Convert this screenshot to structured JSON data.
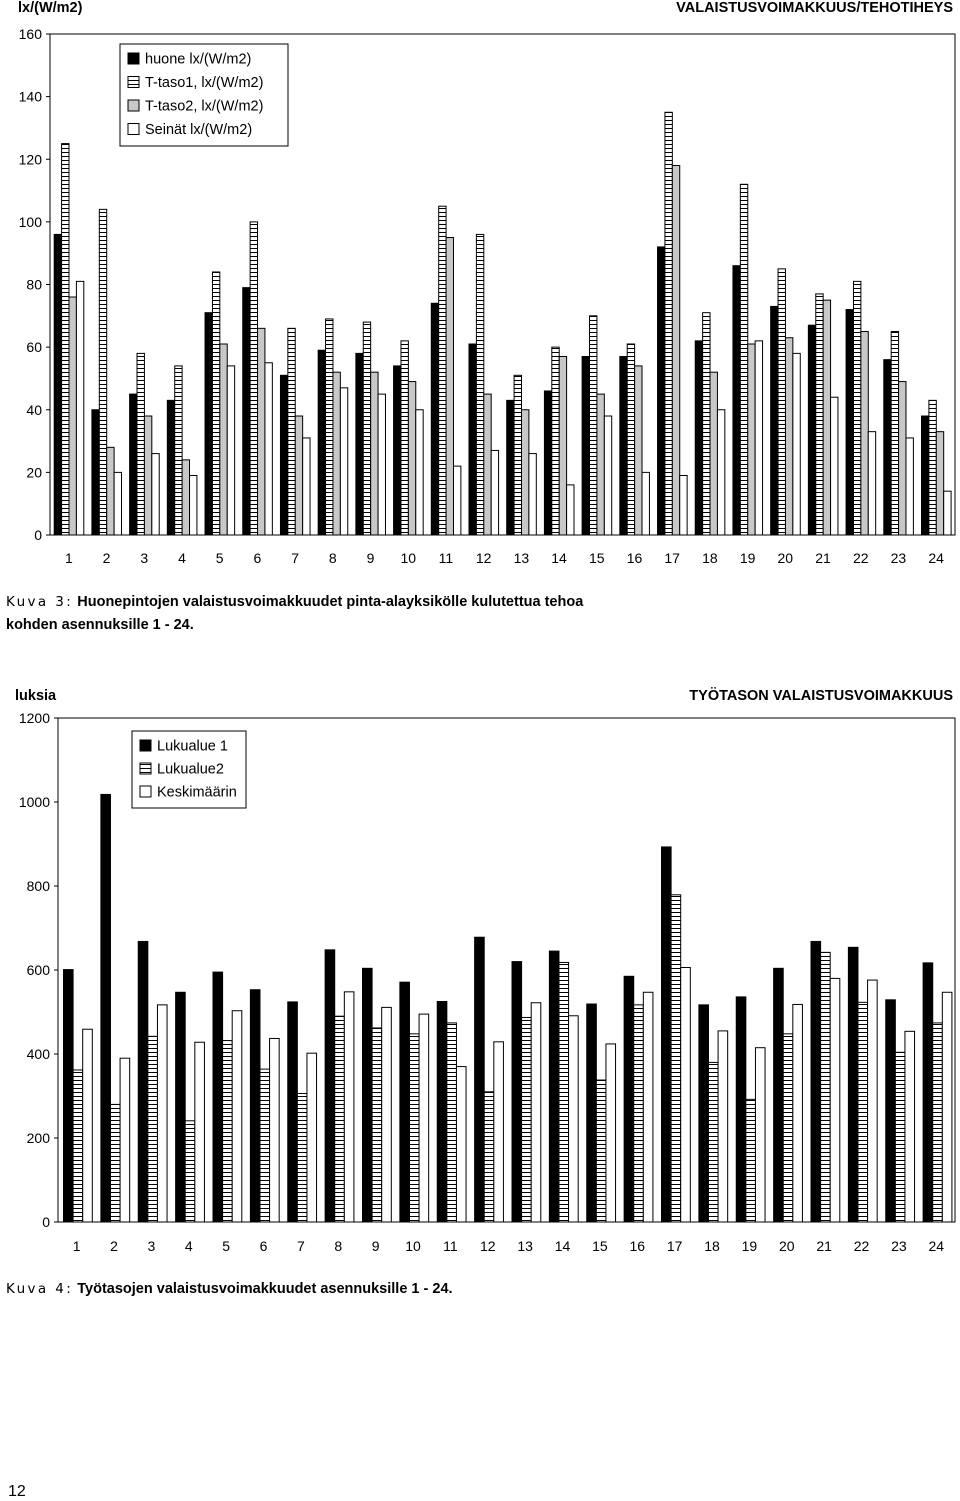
{
  "chart_data": [
    {
      "type": "bar",
      "title": "VALAISTUSVOIMAKKUUS/TEHOTIHEYS",
      "ylabel": "lx/(W/m2)",
      "xlabel": "",
      "ylim": [
        0,
        160
      ],
      "yticks": [
        0,
        20,
        40,
        60,
        80,
        100,
        120,
        140,
        160
      ],
      "grid": false,
      "legend_position": "top-left",
      "categories": [
        "1",
        "2",
        "3",
        "4",
        "5",
        "6",
        "7",
        "8",
        "9",
        "10",
        "11",
        "12",
        "13",
        "14",
        "15",
        "16",
        "17",
        "18",
        "19",
        "20",
        "21",
        "22",
        "23",
        "24"
      ],
      "series": [
        {
          "name": "huone lx/(W/m2)",
          "pattern": "solid",
          "values": [
            96,
            40,
            45,
            43,
            71,
            79,
            51,
            59,
            58,
            54,
            74,
            61,
            43,
            46,
            57,
            57,
            92,
            62,
            86,
            73,
            67,
            72,
            56,
            38
          ]
        },
        {
          "name": "T-taso1, lx/(W/m2)",
          "pattern": "hstripe",
          "values": [
            125,
            104,
            58,
            54,
            84,
            100,
            66,
            69,
            68,
            62,
            105,
            96,
            51,
            60,
            70,
            61,
            135,
            71,
            112,
            85,
            77,
            81,
            65,
            43
          ]
        },
        {
          "name": "T-taso2, lx/(W/m2)",
          "pattern": "gray",
          "values": [
            76,
            28,
            38,
            24,
            61,
            66,
            38,
            52,
            52,
            49,
            95,
            45,
            40,
            57,
            45,
            54,
            118,
            52,
            61,
            63,
            75,
            65,
            49,
            33
          ]
        },
        {
          "name": "Seinät lx/(W/m2)",
          "pattern": "white",
          "values": [
            81,
            20,
            26,
            19,
            54,
            55,
            31,
            47,
            45,
            40,
            22,
            27,
            26,
            16,
            38,
            20,
            19,
            40,
            62,
            58,
            44,
            33,
            31,
            14
          ]
        }
      ]
    },
    {
      "type": "bar",
      "title": "TYÖTASON VALAISTUSVOIMAKKUUS",
      "ylabel": "luksia",
      "xlabel": "",
      "ylim": [
        0,
        1200
      ],
      "yticks": [
        0,
        200,
        400,
        600,
        800,
        1000,
        1200
      ],
      "grid": false,
      "legend_position": "top-left",
      "categories": [
        "1",
        "2",
        "3",
        "4",
        "5",
        "6",
        "7",
        "8",
        "9",
        "10",
        "11",
        "12",
        "13",
        "14",
        "15",
        "16",
        "17",
        "18",
        "19",
        "20",
        "21",
        "22",
        "23",
        "24"
      ],
      "series": [
        {
          "name": "Lukualue 1",
          "pattern": "solid",
          "values": [
            601,
            1018,
            668,
            547,
            595,
            553,
            524,
            648,
            604,
            571,
            525,
            678,
            620,
            645,
            519,
            585,
            893,
            517,
            536,
            604,
            668,
            654,
            529,
            617
          ]
        },
        {
          "name": "Lukualue2",
          "pattern": "hstripe",
          "values": [
            362,
            280,
            442,
            241,
            432,
            364,
            306,
            490,
            462,
            448,
            474,
            310,
            487,
            618,
            338,
            517,
            779,
            380,
            292,
            448,
            642,
            523,
            404,
            474
          ]
        },
        {
          "name": "Keskimäärin",
          "pattern": "white",
          "values": [
            459,
            390,
            517,
            428,
            503,
            437,
            402,
            548,
            511,
            495,
            370,
            429,
            522,
            491,
            424,
            547,
            606,
            455,
            415,
            518,
            580,
            576,
            454,
            547
          ]
        }
      ]
    }
  ],
  "captions": {
    "fig3_label": "Kuva 3:",
    "fig3_text_line1": "Huonepintojen valaistusvoimakkuudet pinta-alayksikölle kulutettua tehoa",
    "fig3_text_line2": "kohden asennuksille 1 - 24.",
    "fig4_label": "Kuva 4:",
    "fig4_text": "Työtasojen valaistusvoimakkuudet asennuksille 1 - 24."
  },
  "page_number": "12"
}
